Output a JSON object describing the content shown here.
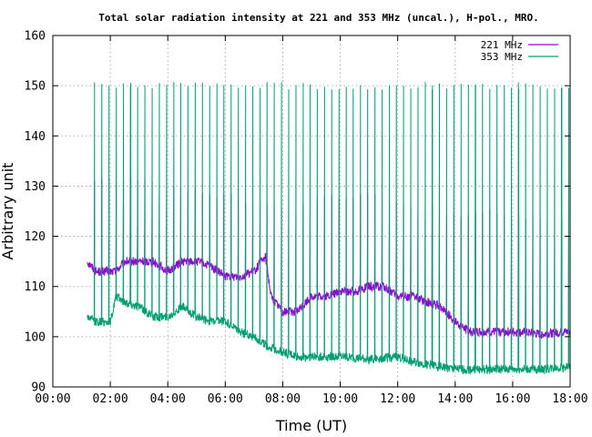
{
  "chart_data": {
    "type": "line",
    "title": "Total solar radiation intensity at 221 and 353 MHz (uncal.), H-pol., MRO.",
    "xlabel": "Time (UT)",
    "ylabel": "Arbitrary unit",
    "xlim": [
      0,
      18
    ],
    "ylim": [
      90,
      160
    ],
    "x_ticks": [
      "00:00",
      "02:00",
      "04:00",
      "06:00",
      "08:00",
      "10:00",
      "12:00",
      "14:00",
      "16:00",
      "18:00"
    ],
    "y_ticks": [
      "90",
      "100",
      "110",
      "120",
      "130",
      "140",
      "150",
      "160"
    ],
    "grid": "dotted",
    "legend_position": "top-right",
    "data_start_hour": 1.2,
    "data_end_hour": 18.0,
    "series": [
      {
        "name": "221 MHz",
        "color": "#9400d3",
        "baseline": [
          [
            1.2,
            115
          ],
          [
            1.5,
            113
          ],
          [
            2.2,
            113
          ],
          [
            2.5,
            115
          ],
          [
            3.0,
            115
          ],
          [
            3.5,
            115
          ],
          [
            4.0,
            113
          ],
          [
            4.5,
            115
          ],
          [
            5.0,
            115
          ],
          [
            5.5,
            114
          ],
          [
            6.0,
            112
          ],
          [
            6.5,
            112
          ],
          [
            7.0,
            113
          ],
          [
            7.4,
            116
          ],
          [
            7.6,
            108
          ],
          [
            8.0,
            105
          ],
          [
            8.5,
            105
          ],
          [
            9.0,
            108
          ],
          [
            9.5,
            108
          ],
          [
            10.0,
            109
          ],
          [
            10.5,
            109
          ],
          [
            11.0,
            110
          ],
          [
            11.5,
            110
          ],
          [
            12.0,
            108
          ],
          [
            12.5,
            108
          ],
          [
            13.0,
            107
          ],
          [
            13.5,
            106
          ],
          [
            14.0,
            103
          ],
          [
            14.5,
            101
          ],
          [
            15.0,
            101
          ],
          [
            16.0,
            101
          ],
          [
            17.0,
            100.5
          ],
          [
            18.0,
            101
          ]
        ],
        "spike_top": [
          [
            1.2,
            132
          ],
          [
            2.0,
            131
          ],
          [
            3.0,
            131
          ],
          [
            4.0,
            130
          ],
          [
            5.0,
            129
          ],
          [
            6.0,
            128
          ],
          [
            7.0,
            127
          ],
          [
            8.0,
            126
          ],
          [
            9.0,
            127
          ],
          [
            10.0,
            128
          ],
          [
            11.0,
            128
          ],
          [
            12.0,
            127
          ],
          [
            13.0,
            126
          ],
          [
            14.0,
            124
          ],
          [
            15.0,
            125
          ],
          [
            16.0,
            124
          ],
          [
            17.0,
            124
          ],
          [
            18.0,
            124
          ]
        ]
      },
      {
        "name": "353 MHz",
        "color": "#009e73",
        "baseline": [
          [
            1.2,
            104
          ],
          [
            1.5,
            103
          ],
          [
            2.0,
            103
          ],
          [
            2.2,
            108
          ],
          [
            2.5,
            107
          ],
          [
            3.0,
            106
          ],
          [
            3.5,
            104
          ],
          [
            4.0,
            104
          ],
          [
            4.5,
            106
          ],
          [
            5.0,
            104
          ],
          [
            5.5,
            103
          ],
          [
            6.0,
            103
          ],
          [
            6.5,
            101
          ],
          [
            7.0,
            100
          ],
          [
            7.5,
            98
          ],
          [
            8.0,
            97
          ],
          [
            8.5,
            96
          ],
          [
            9.0,
            96
          ],
          [
            10.0,
            96
          ],
          [
            11.0,
            95.5
          ],
          [
            12.0,
            96
          ],
          [
            12.5,
            95
          ],
          [
            13.0,
            94.5
          ],
          [
            13.5,
            94
          ],
          [
            14.0,
            93.5
          ],
          [
            15.0,
            93.5
          ],
          [
            16.0,
            93.5
          ],
          [
            17.0,
            93.5
          ],
          [
            18.0,
            94
          ]
        ],
        "spike_top": [
          [
            1.2,
            150
          ],
          [
            18.0,
            150
          ]
        ]
      }
    ],
    "spike_period_hours": 0.25
  }
}
